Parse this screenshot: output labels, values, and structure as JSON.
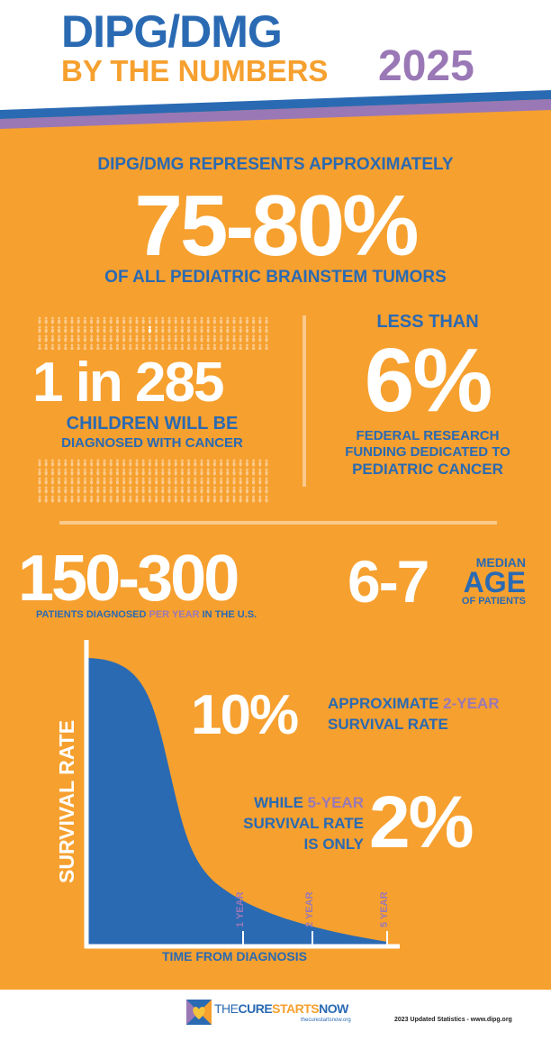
{
  "header": {
    "title_line1": "DIPG/DMG",
    "title_line2": "BY THE NUMBERS",
    "year": "2025"
  },
  "stat_brainstem": {
    "intro": "DIPG/DMG REPRESENTS APPROXIMATELY",
    "value": "75-80%",
    "caption": "OF ALL PEDIATRIC  BRAINSTEM TUMORS"
  },
  "stat_children": {
    "value": "1 in 285",
    "caption_line1": "CHILDREN WILL BE",
    "caption_line2": "DIAGNOSED WITH CANCER"
  },
  "stat_funding": {
    "intro": "LESS THAN",
    "value": "6%",
    "caption_line1": "FEDERAL RESEARCH",
    "caption_line2": "FUNDING DEDICATED TO",
    "caption_line3": "PEDIATRIC CANCER"
  },
  "stat_patients": {
    "value": "150-300",
    "caption_pre": "PATIENTS DIAGNOSED ",
    "caption_highlight": "PER YEAR",
    "caption_post": " IN THE U.S."
  },
  "stat_age": {
    "value": "6-7",
    "label_top": "MEDIAN",
    "label_mid": "AGE",
    "label_bottom": "OF PATIENTS"
  },
  "survival": {
    "two_year_value": "10%",
    "two_year_pre": "APPROXIMATE ",
    "two_year_highlight": "2-YEAR",
    "two_year_line2": "SURVIVAL RATE",
    "five_year_pre": "WHILE ",
    "five_year_highlight": "5-YEAR",
    "five_year_line2": "SURVIVAL RATE",
    "five_year_line3": "IS ONLY",
    "five_year_value": "2%"
  },
  "chart_data": {
    "type": "area",
    "ylabel": "SURVIVAL RATE",
    "xlabel": "TIME FROM DIAGNOSIS",
    "markers": [
      "1 YEAR",
      "2 YEAR",
      "5 YEAR"
    ],
    "grid": false
  },
  "footer": {
    "logo_text_the": "THE",
    "logo_text_cure": "CURE",
    "logo_text_starts": "STARTS",
    "logo_text_now": "NOW",
    "logo_url": "thecurestartsnow.org",
    "note": "2023 Updated Statistics - www.dipg.org"
  },
  "colors": {
    "orange": "#f6a02f",
    "blue": "#2a6ab3",
    "purple": "#9a78b6",
    "white": "#ffffff"
  }
}
